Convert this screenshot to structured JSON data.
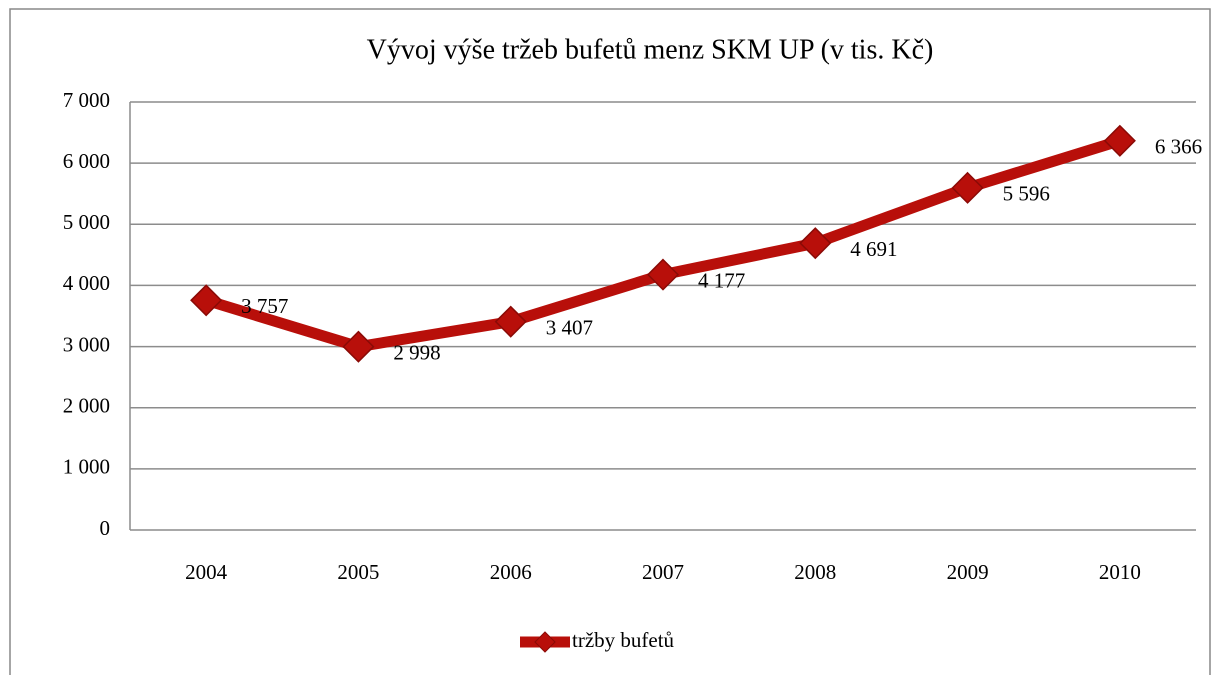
{
  "chart_data": {
    "type": "line",
    "title": "Vývoj výše tržeb bufetů menz SKM UP (v tis. Kč)",
    "categories": [
      "2004",
      "2005",
      "2006",
      "2007",
      "2008",
      "2009",
      "2010"
    ],
    "series": [
      {
        "name": "tržby bufetů",
        "color": "#b80f0a",
        "values": [
          3757,
          2998,
          3407,
          4177,
          4691,
          5596,
          6366
        ],
        "value_labels": [
          "3 757",
          "2 998",
          "3 407",
          "4 177",
          "4 691",
          "5 596",
          "6 366"
        ]
      }
    ],
    "ylim": [
      0,
      7000
    ],
    "yticks": [
      {
        "value": 0,
        "label": "0"
      },
      {
        "value": 1000,
        "label": "1 000"
      },
      {
        "value": 2000,
        "label": "2 000"
      },
      {
        "value": 3000,
        "label": "3 000"
      },
      {
        "value": 4000,
        "label": "4 000"
      },
      {
        "value": 5000,
        "label": "5 000"
      },
      {
        "value": 6000,
        "label": "6 000"
      },
      {
        "value": 7000,
        "label": "7 000"
      }
    ],
    "grid": true,
    "legend": "bottom"
  }
}
